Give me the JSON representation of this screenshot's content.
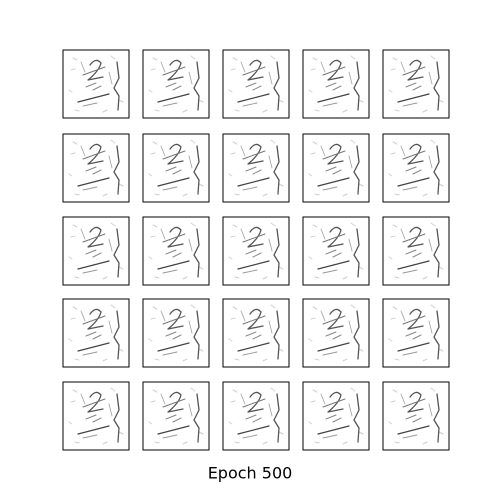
{
  "caption": "Epoch 500"
}
